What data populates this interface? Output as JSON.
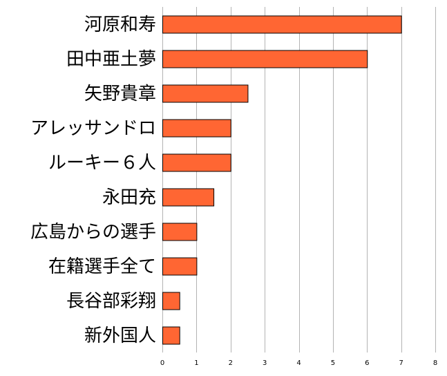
{
  "chart_data": {
    "type": "bar",
    "orientation": "horizontal",
    "categories": [
      "河原和寿",
      "田中亜土夢",
      "矢野貴章",
      "アレッサンドロ",
      "ルーキー６人",
      "永田充",
      "広島からの選手",
      "在籍選手全て",
      "長谷部彩翔",
      "新外国人"
    ],
    "values": [
      7,
      6,
      2.5,
      2,
      2,
      1.5,
      1,
      1,
      0.5,
      0.5
    ],
    "xlim": [
      0,
      8
    ],
    "xticks": [
      0,
      1,
      2,
      3,
      4,
      5,
      6,
      7,
      8
    ],
    "grid": true,
    "bar_color": "#ff6633",
    "title": "",
    "xlabel": "",
    "ylabel": ""
  }
}
